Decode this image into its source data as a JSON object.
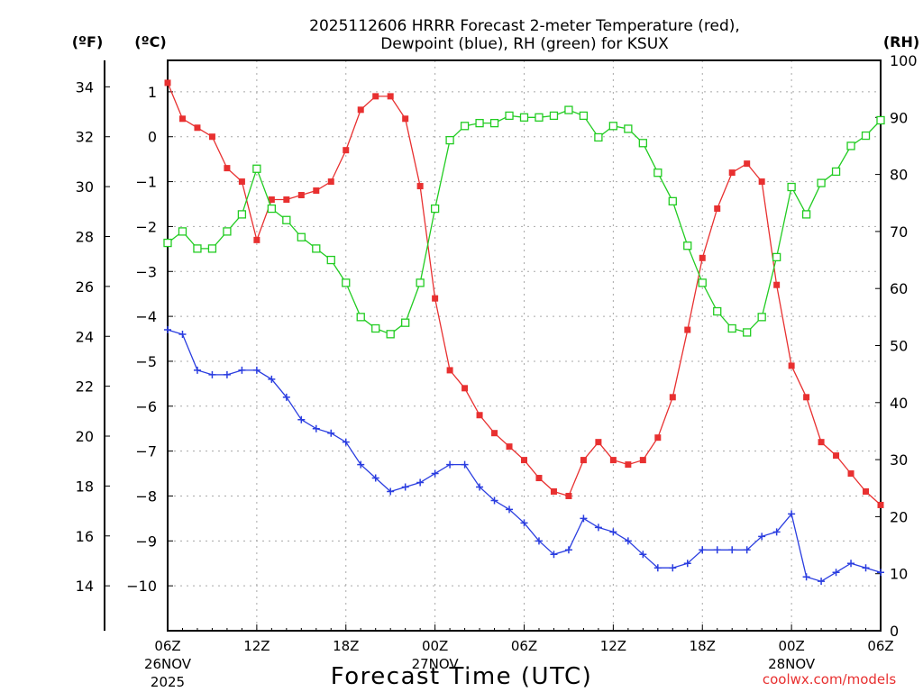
{
  "chart_data": {
    "type": "line",
    "title_line1": "2025112606 HRRR Forecast 2-meter Temperature (red),",
    "title_line2": "Dewpoint (blue), RH (green) for KSUX",
    "xlabel": "Forecast Time (UTC)",
    "unit_f": "(ºF)",
    "unit_c": "(ºC)",
    "unit_rh": "(RH)",
    "credit": "coolwx.com/models",
    "ylim_c": [
      -11,
      1.7
    ],
    "ylim_rh": [
      0,
      100
    ],
    "f_ticks": [
      14,
      16,
      18,
      20,
      22,
      24,
      26,
      28,
      30,
      32,
      34
    ],
    "c_ticks": [
      1,
      0,
      -1,
      -2,
      -3,
      -4,
      -5,
      -6,
      -7,
      -8,
      -9,
      -10
    ],
    "rh_ticks": [
      0,
      10,
      20,
      30,
      40,
      50,
      60,
      70,
      80,
      90,
      100
    ],
    "x_hours": [
      0,
      1,
      2,
      3,
      4,
      5,
      6,
      7,
      8,
      9,
      10,
      11,
      12,
      13,
      14,
      15,
      16,
      17,
      18,
      19,
      20,
      21,
      22,
      23,
      24,
      25,
      26,
      27,
      28,
      29,
      30,
      31,
      32,
      33,
      34,
      35,
      36,
      37,
      38,
      39,
      40,
      41,
      42,
      43,
      44,
      45,
      46,
      47,
      48
    ],
    "x_ticks": [
      {
        "hour": 0,
        "label": "06Z",
        "date1": "26NOV",
        "date2": "2025"
      },
      {
        "hour": 6,
        "label": "12Z"
      },
      {
        "hour": 12,
        "label": "18Z"
      },
      {
        "hour": 18,
        "label": "00Z",
        "date1": "27NOV"
      },
      {
        "hour": 24,
        "label": "06Z"
      },
      {
        "hour": 30,
        "label": "12Z"
      },
      {
        "hour": 36,
        "label": "18Z"
      },
      {
        "hour": 42,
        "label": "00Z",
        "date1": "28NOV"
      },
      {
        "hour": 48,
        "label": "06Z"
      }
    ],
    "series": [
      {
        "name": "Temperature",
        "unit": "C",
        "color": "#e83030",
        "marker": "filled-square",
        "values": [
          1.2,
          0.4,
          0.2,
          0.0,
          -0.7,
          -1.0,
          -2.3,
          -1.4,
          -1.4,
          -1.3,
          -1.2,
          -1.0,
          -0.3,
          0.6,
          0.9,
          0.9,
          0.4,
          -1.1,
          -3.6,
          -5.2,
          -5.6,
          -6.2,
          -6.6,
          -6.9,
          -7.2,
          -7.6,
          -7.9,
          -8.0,
          -7.2,
          -6.8,
          -7.2,
          -7.3,
          -7.2,
          -6.7,
          -5.8,
          -4.3,
          -2.7,
          -1.6,
          -0.8,
          -0.6,
          -1.0,
          -3.3,
          -5.1,
          -5.8,
          -6.8,
          -7.1,
          -7.5,
          -7.9,
          -8.2
        ]
      },
      {
        "name": "Dewpoint",
        "unit": "C",
        "color": "#2a3de0",
        "marker": "plus",
        "values": [
          -4.3,
          -4.4,
          -5.2,
          -5.3,
          -5.3,
          -5.2,
          -5.2,
          -5.4,
          -5.8,
          -6.3,
          -6.5,
          -6.6,
          -6.8,
          -7.3,
          -7.6,
          -7.9,
          -7.8,
          -7.7,
          -7.5,
          -7.3,
          -7.3,
          -7.8,
          -8.1,
          -8.3,
          -8.6,
          -9.0,
          -9.3,
          -9.2,
          -8.5,
          -8.7,
          -8.8,
          -9.0,
          -9.3,
          -9.6,
          -9.6,
          -9.5,
          -9.2,
          -9.2,
          -9.2,
          -9.2,
          -8.9,
          -8.8,
          -8.4,
          -9.8,
          -9.9,
          -9.7,
          -9.5,
          -9.6,
          -9.7
        ]
      },
      {
        "name": "RH",
        "unit": "%",
        "color": "#22cc22",
        "marker": "open-square",
        "values": [
          68,
          70,
          67,
          67,
          70,
          73,
          81,
          74,
          72,
          69,
          67,
          65,
          61,
          55,
          53,
          52,
          54,
          61,
          74,
          86,
          88.5,
          89,
          89,
          90.3,
          90,
          90,
          90.3,
          91.3,
          90.3,
          86.5,
          88.5,
          88,
          85.5,
          80.3,
          75.3,
          67.5,
          61,
          56,
          53,
          52.3,
          55,
          65.5,
          77.8,
          73,
          78.5,
          80.5,
          85,
          86.8,
          89.5
        ]
      }
    ]
  }
}
